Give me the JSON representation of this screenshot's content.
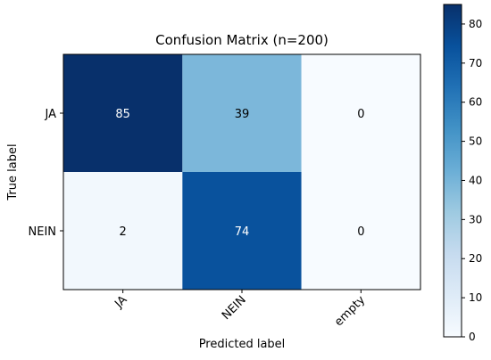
{
  "chart_data": {
    "type": "heatmap",
    "title": "Confusion Matrix (n=200)",
    "xlabel": "Predicted label",
    "ylabel": "True label",
    "x_categories": [
      "JA",
      "NEIN",
      "empty"
    ],
    "y_categories": [
      "JA",
      "NEIN"
    ],
    "values": [
      [
        85,
        39,
        0
      ],
      [
        2,
        74,
        0
      ]
    ],
    "colormap": "Blues",
    "colorbar": {
      "min": 0,
      "max": 85,
      "ticks": [
        0,
        10,
        20,
        30,
        40,
        50,
        60,
        70,
        80
      ]
    },
    "text_colors": {
      "light": "#ffffff",
      "dark": "#000000"
    }
  }
}
